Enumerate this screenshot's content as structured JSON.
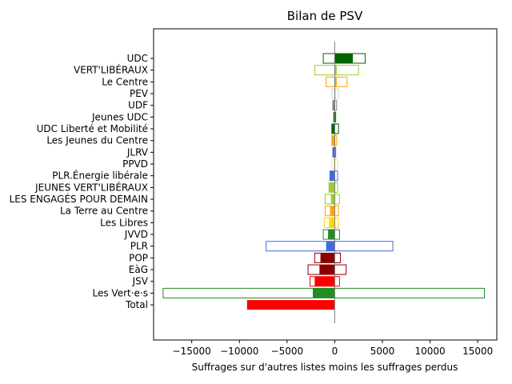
{
  "chart_data": {
    "type": "bar",
    "orientation": "horizontal",
    "title": "Bilan de PSV",
    "xlabel": "Suffrages sur d'autres listes moins les suffrages perdus",
    "ylabel": "",
    "xlim": [
      -19000,
      17000
    ],
    "xticks": [
      -15000,
      -10000,
      -5000,
      0,
      5000,
      10000,
      15000
    ],
    "xtick_labels": [
      "−15000",
      "−10000",
      "−5000",
      "0",
      "5000",
      "10000",
      "15000"
    ],
    "grid": false,
    "zero_line_color": "#808080",
    "categories": [
      "UDC",
      "VERT'LIBÉRAUX",
      "Le Centre",
      "PEV",
      "UDF",
      "Jeunes UDC",
      "UDC Liberté et Mobilité",
      "Les Jeunes du Centre",
      "JLRV",
      "PPVD",
      "PLR.Énergie libérale",
      "JEUNES VERT'LIBÉRAUX",
      "LES ENGAGÉS POUR DEMAIN",
      "La Terre au Centre",
      "Les Libres",
      "JVVD",
      "PLR",
      "POP",
      "EàG",
      "JSV",
      "Les Vert·e·s",
      "Total"
    ],
    "colors": [
      "#006400",
      "#9acd32",
      "#ffa500",
      "#d3d3d3",
      "#808080",
      "#006400",
      "#006400",
      "#ffa500",
      "#4169e1",
      "#f0e68c",
      "#4169e1",
      "#9acd32",
      "#9acd32",
      "#ffa500",
      "#ffd700",
      "#228b22",
      "#4169e1",
      "#8b0000",
      "#8b0000",
      "#ff0000",
      "#228b22",
      "#ff0000"
    ],
    "series": [
      {
        "name": "",
        "role": "outline_positive",
        "values": [
          3200,
          2500,
          1300,
          400,
          200,
          100,
          400,
          200,
          100,
          300,
          300,
          300,
          500,
          400,
          400,
          500,
          6100,
          600,
          1200,
          500,
          15700,
          0
        ]
      },
      {
        "name": "",
        "role": "outline_negative",
        "values": [
          -1200,
          -2100,
          -900,
          -300,
          -200,
          -100,
          -300,
          -300,
          -200,
          -300,
          -500,
          -600,
          -1000,
          -1000,
          -1100,
          -1200,
          -7200,
          -2100,
          -2800,
          -2600,
          -18000,
          0
        ]
      },
      {
        "name": "",
        "role": "net",
        "values": [
          1900,
          200,
          200,
          100,
          -200,
          -100,
          -300,
          -300,
          -200,
          -100,
          -500,
          -600,
          -400,
          -500,
          -600,
          -700,
          -900,
          -1500,
          -1600,
          -2100,
          -2300,
          -9200
        ]
      }
    ]
  }
}
